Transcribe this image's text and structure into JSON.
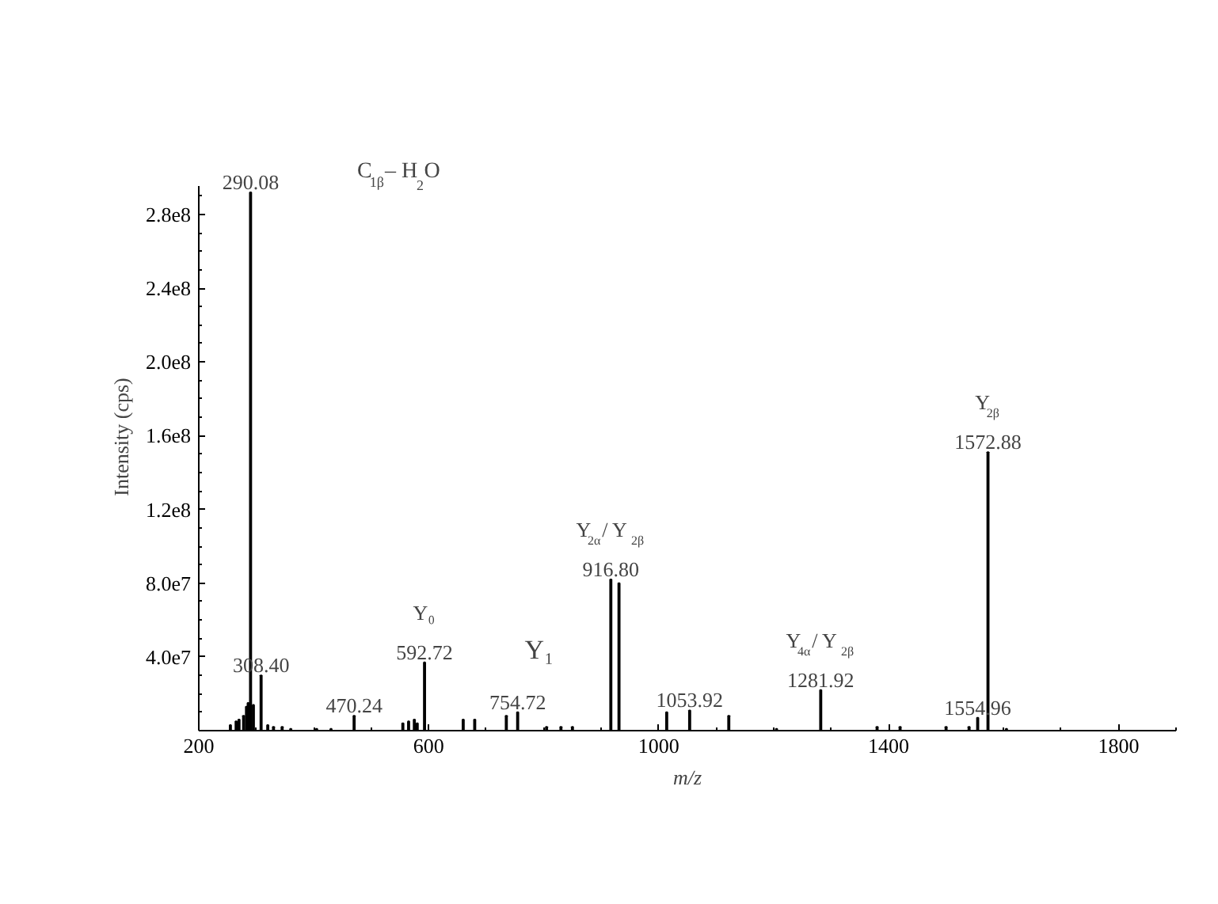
{
  "chart_data": {
    "type": "bar",
    "xlabel": "m/z",
    "ylabel": "Intensity (cps)",
    "x": [
      255,
      265,
      270,
      278,
      283,
      286,
      290.08,
      295,
      308.4,
      320,
      330,
      345,
      360,
      405,
      430,
      470.24,
      555,
      565,
      575,
      580,
      592.72,
      660,
      680,
      735,
      754.72,
      805,
      830,
      850,
      916.8,
      931,
      1014,
      1053.92,
      1122,
      1205,
      1281.92,
      1380,
      1420,
      1500,
      1540,
      1554.96,
      1572.88,
      1605
    ],
    "values": [
      3000000,
      5000000,
      6000000,
      8000000,
      13000000,
      15000000,
      292000000,
      14000000,
      30000000,
      3000000,
      2000000,
      2000000,
      1000000,
      1000000,
      1000000,
      8000000,
      4000000,
      5000000,
      6000000,
      4000000,
      37000000,
      6000000,
      6000000,
      8000000,
      10000000,
      2000000,
      2000000,
      2000000,
      82000000,
      80000000,
      10000000,
      11000000,
      8000000,
      1000000,
      22000000,
      2000000,
      2000000,
      2000000,
      2000000,
      7000000,
      151000000,
      1000000
    ],
    "color": "#000000",
    "xlim": [
      200,
      1900
    ],
    "ylim": [
      0,
      295000000
    ],
    "xticks": [
      200,
      600,
      1000,
      1400,
      1800
    ],
    "yticks": [
      {
        "value": 40000000,
        "label": "4.0e7"
      },
      {
        "value": 80000000,
        "label": "8.0e7"
      },
      {
        "value": 120000000,
        "label": "1.2e8"
      },
      {
        "value": 160000000,
        "label": "1.6e8"
      },
      {
        "value": 200000000,
        "label": "2.0e8"
      },
      {
        "value": 240000000,
        "label": "2.4e8"
      },
      {
        "value": 280000000,
        "label": "2.8e8"
      }
    ],
    "annotations": [
      {
        "text": "290.08",
        "x": 290.08,
        "y": 292000000
      },
      {
        "text": "308.40",
        "x": 308.4,
        "y": 30000000
      },
      {
        "text": "470.24",
        "x": 470.24,
        "y": 8000000
      },
      {
        "text": "592.72",
        "x": 592.72,
        "y": 37000000
      },
      {
        "text": "754.72",
        "x": 754.72,
        "y": 10000000
      },
      {
        "text": "916.80",
        "x": 916.8,
        "y": 82000000
      },
      {
        "text": "1053.92",
        "x": 1053.92,
        "y": 11000000
      },
      {
        "text": "1281.92",
        "x": 1281.92,
        "y": 22000000
      },
      {
        "text": "1554.96",
        "x": 1554.96,
        "y": 7000000
      },
      {
        "text": "1572.88",
        "x": 1572.88,
        "y": 151000000
      },
      "C$_{1β}$– H$_{2}$O",
      {
        "text": "Y₀",
        "x": 592.72,
        "y": 37000000
      },
      {
        "text": "Y₁",
        "x": 754.72,
        "y": 10000000
      },
      {
        "text": "Y$_{2α}$/ Y$_{2β}$",
        "x": 916.8,
        "y": 82000000
      },
      {
        "text": "Y$_{4α}$/ Y$_{2β}$",
        "x": 1281.92,
        "y": 22000000
      },
      {
        "text": "Y$_{2β}$",
        "x": 1572.88,
        "y": 151000000
      }
    ]
  }
}
